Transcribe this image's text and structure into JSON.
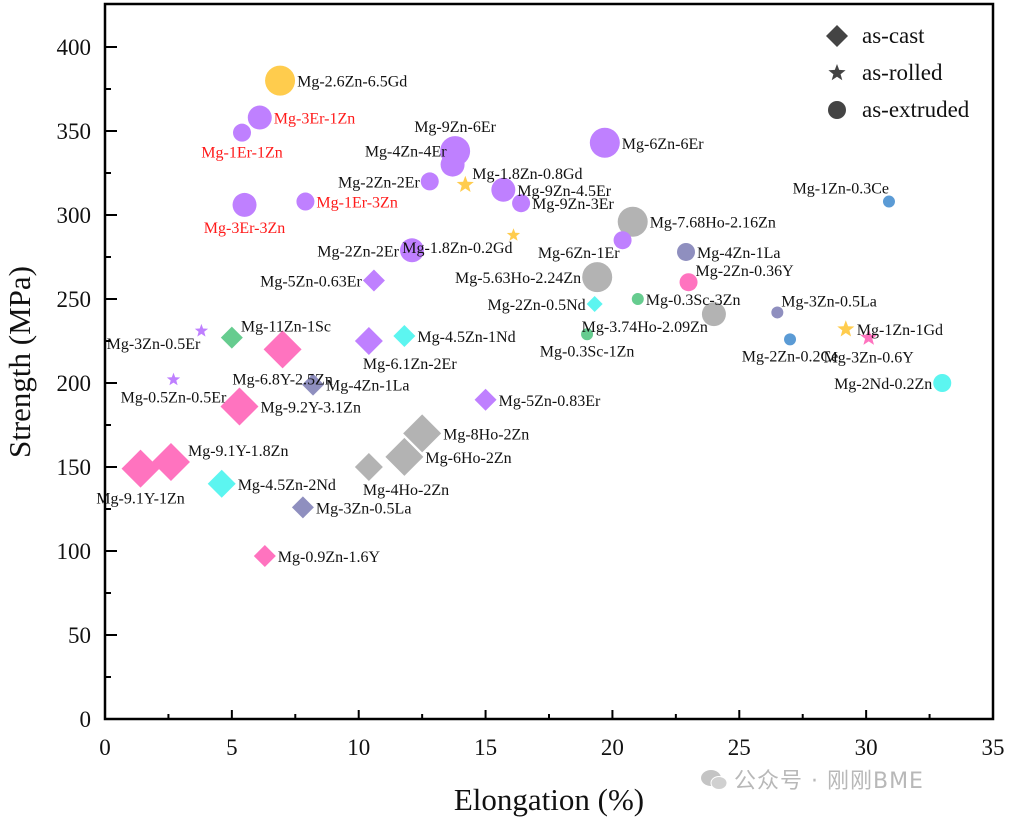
{
  "chart_data": {
    "type": "scatter",
    "title": "",
    "xlabel": "Elongation (%)",
    "ylabel": "Strength (MPa)",
    "xlim": [
      0,
      35
    ],
    "ylim": [
      0,
      420
    ],
    "xticks": [
      0,
      5,
      10,
      15,
      20,
      25,
      30,
      35
    ],
    "yticks": [
      0,
      50,
      100,
      150,
      200,
      250,
      300,
      350,
      400
    ],
    "grid": false,
    "legend": {
      "placement": "top-right",
      "entries": [
        {
          "label": "as-cast",
          "marker": "diamond"
        },
        {
          "label": "as-rolled",
          "marker": "star"
        },
        {
          "label": "as-extruded",
          "marker": "circle"
        }
      ]
    },
    "colors": {
      "gold": "#ffcc4d",
      "purple": "#bf80ff",
      "gray": "#b3b3b3",
      "blue": "#5b9bd5",
      "slate": "#8f8fbf",
      "pink": "#ff73bf",
      "green": "#66cc8f",
      "cyan": "#5cf5f0",
      "red_label": "#ff1a1a"
    },
    "points": [
      {
        "name": "Mg-2.6Zn-6.5Gd",
        "x": 6.9,
        "y": 380,
        "state": "as-extruded",
        "color": "gold",
        "size": 3,
        "label_pos": "right"
      },
      {
        "name": "Mg-3Er-1Zn",
        "x": 6.1,
        "y": 358,
        "state": "as-extruded",
        "color": "purple",
        "size": 2,
        "label_pos": "right",
        "label_color": "red"
      },
      {
        "name": "Mg-1Er-1Zn",
        "x": 5.4,
        "y": 349,
        "state": "as-extruded",
        "color": "purple",
        "size": 1,
        "label_pos": "below",
        "label_color": "red"
      },
      {
        "name": "Mg-3Er-3Zn",
        "x": 5.5,
        "y": 306,
        "state": "as-extruded",
        "color": "purple",
        "size": 2,
        "label_pos": "below",
        "label_color": "red"
      },
      {
        "name": "Mg-1Er-3Zn",
        "x": 7.9,
        "y": 308,
        "state": "as-extruded",
        "color": "purple",
        "size": 1,
        "label_pos": "right",
        "label_color": "red"
      },
      {
        "name": "Mg-9Zn-6Er",
        "x": 13.8,
        "y": 338,
        "state": "as-extruded",
        "color": "purple",
        "size": 3,
        "label_pos": "above"
      },
      {
        "name": "Mg-4Zn-4Er",
        "x": 13.7,
        "y": 330,
        "state": "as-extruded",
        "color": "purple",
        "size": 2,
        "label_pos": "left-up"
      },
      {
        "name": "Mg-2Zn-2Er",
        "x": 12.8,
        "y": 320,
        "state": "as-extruded",
        "color": "purple",
        "size": 1,
        "label_pos": "left"
      },
      {
        "name": "Mg-1.8Zn-0.8Gd",
        "x": 14.2,
        "y": 318,
        "state": "as-rolled",
        "color": "gold",
        "size": 1,
        "label_pos": "right-up"
      },
      {
        "name": "Mg-9Zn-4.5Er",
        "x": 15.7,
        "y": 315,
        "state": "as-extruded",
        "color": "purple",
        "size": 2,
        "label_pos": "right"
      },
      {
        "name": "Mg-9Zn-3Er",
        "x": 16.4,
        "y": 307,
        "state": "as-extruded",
        "color": "purple",
        "size": 1,
        "label_pos": "right"
      },
      {
        "name": "Mg-6Zn-6Er",
        "x": 19.7,
        "y": 343,
        "state": "as-extruded",
        "color": "purple",
        "size": 3,
        "label_pos": "right"
      },
      {
        "name": "Mg-1Zn-0.3Ce",
        "x": 30.9,
        "y": 308,
        "state": "as-extruded",
        "color": "blue",
        "size": 0,
        "label_pos": "left-up"
      },
      {
        "name": "Mg-7.68Ho-2.16Zn",
        "x": 20.8,
        "y": 296,
        "state": "as-extruded",
        "color": "gray",
        "size": 3,
        "label_pos": "right"
      },
      {
        "name": "Mg-6Zn-1Er",
        "x": 20.4,
        "y": 285,
        "state": "as-extruded",
        "color": "purple",
        "size": 1,
        "label_pos": "left-down"
      },
      {
        "name": "Mg-1.8Zn-0.2Gd",
        "x": 16.1,
        "y": 288,
        "state": "as-rolled",
        "color": "gold",
        "size": 0,
        "label_pos": "left-down"
      },
      {
        "name": "Mg-2Zn-2Er",
        "x": 12.1,
        "y": 279,
        "state": "as-extruded",
        "color": "purple",
        "size": 2,
        "label_pos": "left"
      },
      {
        "name": "Mg-4Zn-1La",
        "x": 22.9,
        "y": 278,
        "state": "as-extruded",
        "color": "slate",
        "size": 1,
        "label_pos": "right"
      },
      {
        "name": "Mg-5.63Ho-2.24Zn",
        "x": 19.4,
        "y": 263,
        "state": "as-extruded",
        "color": "gray",
        "size": 3,
        "label_pos": "left"
      },
      {
        "name": "Mg-5Zn-0.63Er",
        "x": 10.6,
        "y": 261,
        "state": "as-cast",
        "color": "purple",
        "size": 1,
        "label_pos": "left"
      },
      {
        "name": "Mg-2Zn-0.36Y",
        "x": 23.0,
        "y": 260,
        "state": "as-extruded",
        "color": "pink",
        "size": 1,
        "label_pos": "right-up"
      },
      {
        "name": "Mg-0.3Sc-3Zn",
        "x": 21.0,
        "y": 250,
        "state": "as-extruded",
        "color": "green",
        "size": 0,
        "label_pos": "right"
      },
      {
        "name": "Mg-2Zn-0.5Nd",
        "x": 19.3,
        "y": 247,
        "state": "as-cast",
        "color": "cyan",
        "size": 0,
        "label_pos": "left"
      },
      {
        "name": "Mg-3Zn-0.5La",
        "x": 26.5,
        "y": 242,
        "state": "as-extruded",
        "color": "slate",
        "size": 0,
        "label_pos": "right-up"
      },
      {
        "name": "Mg-3.74Ho-2.09Zn",
        "x": 24.0,
        "y": 241,
        "state": "as-extruded",
        "color": "gray",
        "size": 2,
        "label_pos": "left-down"
      },
      {
        "name": "Mg-0.3Sc-1Zn",
        "x": 19.0,
        "y": 229,
        "state": "as-extruded",
        "color": "green",
        "size": 0,
        "label_pos": "below"
      },
      {
        "name": "Mg-2Zn-0.2Ce",
        "x": 27.0,
        "y": 226,
        "state": "as-extruded",
        "color": "blue",
        "size": 0,
        "label_pos": "below"
      },
      {
        "name": "Mg-1Zn-1Gd",
        "x": 29.2,
        "y": 232,
        "state": "as-rolled",
        "color": "gold",
        "size": 1,
        "label_pos": "right"
      },
      {
        "name": "Mg-3Zn-0.6Y",
        "x": 30.1,
        "y": 227,
        "state": "as-rolled",
        "color": "pink",
        "size": 1,
        "label_pos": "below"
      },
      {
        "name": "Mg-2Nd-0.2Zn",
        "x": 33.0,
        "y": 200,
        "state": "as-extruded",
        "color": "cyan",
        "size": 1,
        "label_pos": "left"
      },
      {
        "name": "Mg-11Zn-1Sc",
        "x": 5.0,
        "y": 227,
        "state": "as-cast",
        "color": "green",
        "size": 1,
        "label_pos": "right-up"
      },
      {
        "name": "Mg-3Zn-0.5Er",
        "x": 3.8,
        "y": 231,
        "state": "as-rolled",
        "color": "purple",
        "size": 0,
        "label_pos": "left-down"
      },
      {
        "name": "Mg-6.8Y-2.5Zn",
        "x": 7.0,
        "y": 220,
        "state": "as-cast",
        "color": "pink",
        "size": 3,
        "label_pos": "below"
      },
      {
        "name": "Mg-6.1Zn-2Er",
        "x": 10.4,
        "y": 225,
        "state": "as-cast",
        "color": "purple",
        "size": 2,
        "label_pos": "below-right"
      },
      {
        "name": "Mg-4.5Zn-1Nd",
        "x": 11.8,
        "y": 228,
        "state": "as-cast",
        "color": "cyan",
        "size": 1,
        "label_pos": "right"
      },
      {
        "name": "Mg-4Zn-1La",
        "x": 8.2,
        "y": 199,
        "state": "as-cast",
        "color": "slate",
        "size": 1,
        "label_pos": "right"
      },
      {
        "name": "Mg-0.5Zn-0.5Er",
        "x": 2.7,
        "y": 202,
        "state": "as-rolled",
        "color": "purple",
        "size": 0,
        "label_pos": "below"
      },
      {
        "name": "Mg-9.2Y-3.1Zn",
        "x": 5.3,
        "y": 186,
        "state": "as-cast",
        "color": "pink",
        "size": 3,
        "label_pos": "right"
      },
      {
        "name": "Mg-5Zn-0.83Er",
        "x": 15.0,
        "y": 190,
        "state": "as-cast",
        "color": "purple",
        "size": 1,
        "label_pos": "right"
      },
      {
        "name": "Mg-8Ho-2Zn",
        "x": 12.5,
        "y": 170,
        "state": "as-cast",
        "color": "gray",
        "size": 3,
        "label_pos": "right"
      },
      {
        "name": "Mg-6Ho-2Zn",
        "x": 11.8,
        "y": 156,
        "state": "as-cast",
        "color": "gray",
        "size": 3,
        "label_pos": "right"
      },
      {
        "name": "Mg-4Ho-2Zn",
        "x": 10.4,
        "y": 150,
        "state": "as-cast",
        "color": "gray",
        "size": 2,
        "label_pos": "below-right"
      },
      {
        "name": "Mg-9.1Y-1.8Zn",
        "x": 2.6,
        "y": 153,
        "state": "as-cast",
        "color": "pink",
        "size": 3,
        "label_pos": "right-up"
      },
      {
        "name": "Mg-9.1Y-1Zn",
        "x": 1.4,
        "y": 149,
        "state": "as-cast",
        "color": "pink",
        "size": 3,
        "label_pos": "below"
      },
      {
        "name": "Mg-4.5Zn-2Nd",
        "x": 4.6,
        "y": 140,
        "state": "as-cast",
        "color": "cyan",
        "size": 2,
        "label_pos": "right"
      },
      {
        "name": "Mg-3Zn-0.5La",
        "x": 7.8,
        "y": 126,
        "state": "as-cast",
        "color": "slate",
        "size": 1,
        "label_pos": "right"
      },
      {
        "name": "Mg-0.9Zn-1.6Y",
        "x": 6.3,
        "y": 97,
        "state": "as-cast",
        "color": "pink",
        "size": 1,
        "label_pos": "right"
      }
    ]
  },
  "watermark": {
    "text": "公众号 · 刚刚BME",
    "icon": "wechat-icon"
  }
}
